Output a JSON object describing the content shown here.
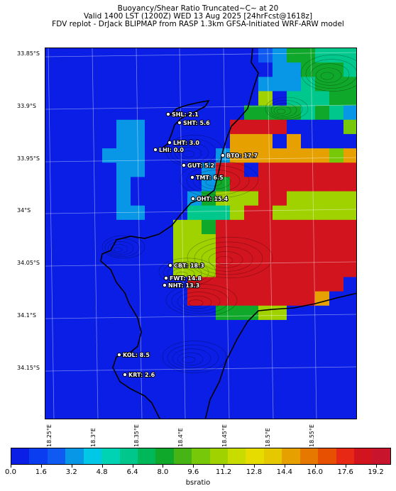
{
  "header": {
    "line1": "Buoyancy/Shear Ratio Truncated~C~    at 20",
    "line2": "Valid 1400 LST (1200Z) WED 13 Aug 2025 [24hrFcst@1618z]",
    "line3": "FDV replot - DrJack BLIPMAP from RASP 1.3km GFSA-Initiated WRF-ARW model"
  },
  "axes": {
    "lat_labels": [
      "33.85°S",
      "33.9°S",
      "33.95°S",
      "34°S",
      "34.05°S",
      "34.1°S",
      "34.15°S"
    ],
    "lon_labels": [
      "18.25°E",
      "18.3°E",
      "18.35°E",
      "18.4°E",
      "18.45°E",
      "18.5°E",
      "18.55°E"
    ]
  },
  "sites": [
    {
      "label": "SHL: 2.1",
      "value": 2.1
    },
    {
      "label": "SHT: 5.6",
      "value": 5.6
    },
    {
      "label": "LHT: 3.0",
      "value": 3.0
    },
    {
      "label": "LHI: 0.0",
      "value": 0.0
    },
    {
      "label": "BTO: 17.7",
      "value": 17.7
    },
    {
      "label": "GUT: 5.2",
      "value": 5.2
    },
    {
      "label": "TMT: 6.5",
      "value": 6.5
    },
    {
      "label": "OHT: 15.4",
      "value": 15.4
    },
    {
      "label": "CBT: 18.3",
      "value": 18.3
    },
    {
      "label": "FWT: 14.8",
      "value": 14.8
    },
    {
      "label": "NHT: 13.3",
      "value": 13.3
    },
    {
      "label": "KOL: 8.5",
      "value": 8.5
    },
    {
      "label": "KRT: 2.6",
      "value": 2.6
    }
  ],
  "colorbar": {
    "label": "bsratio",
    "tick_labels": [
      "0.0",
      "1.6",
      "3.2",
      "4.8",
      "6.4",
      "8.0",
      "9.6",
      "11.2",
      "12.8",
      "14.4",
      "16.0",
      "17.6",
      "19.2"
    ],
    "colors": [
      "#0a1ee6",
      "#0a3cf0",
      "#0f5af0",
      "#0896e6",
      "#00c8e6",
      "#00d2b4",
      "#00c88c",
      "#00b85a",
      "#10a82a",
      "#46b414",
      "#78c80a",
      "#a0d200",
      "#c8dc00",
      "#e6dc00",
      "#e6c800",
      "#e6a000",
      "#e67800",
      "#e65000",
      "#e62814",
      "#d2141e",
      "#c8142c"
    ]
  },
  "grid": {
    "rows": 26,
    "cols": 22,
    "values": [
      "1111111111111110244333",
      "1111111111111111224443",
      "1111111111111112223444",
      "1111111111111115133344",
      "1111111111111144443432",
      "1111122111111666677779",
      "1111122111111888787777",
      "1111222111112888888898",
      "1111122111126676666666",
      "1111121111124666666666",
      "1111121111245556655555",
      "1111122111333566555555",
      "1111111115546666666666",
      "1111111115556666666666",
      "1111111115556666666666",
      "1111111115556666666666",
      "1111111111666666666667",
      "1111111111666666666877",
      "1111111111774445577777",
      "1111111111777777777777",
      "1111111111777777777777",
      "1111111111777777777777",
      "1111111111777777777777",
      "1111111111177777777777",
      "1111111111117777777777",
      "1111111111117777777777"
    ],
    "legend": {
      "1": 0.4,
      "2": 3.2,
      "3": 6.0,
      "4": 8.5,
      "5": 11.0,
      "6": 18.5,
      "7": 0.5,
      "8": 15.0,
      "9": 10.0,
      "0": 2.0
    }
  }
}
